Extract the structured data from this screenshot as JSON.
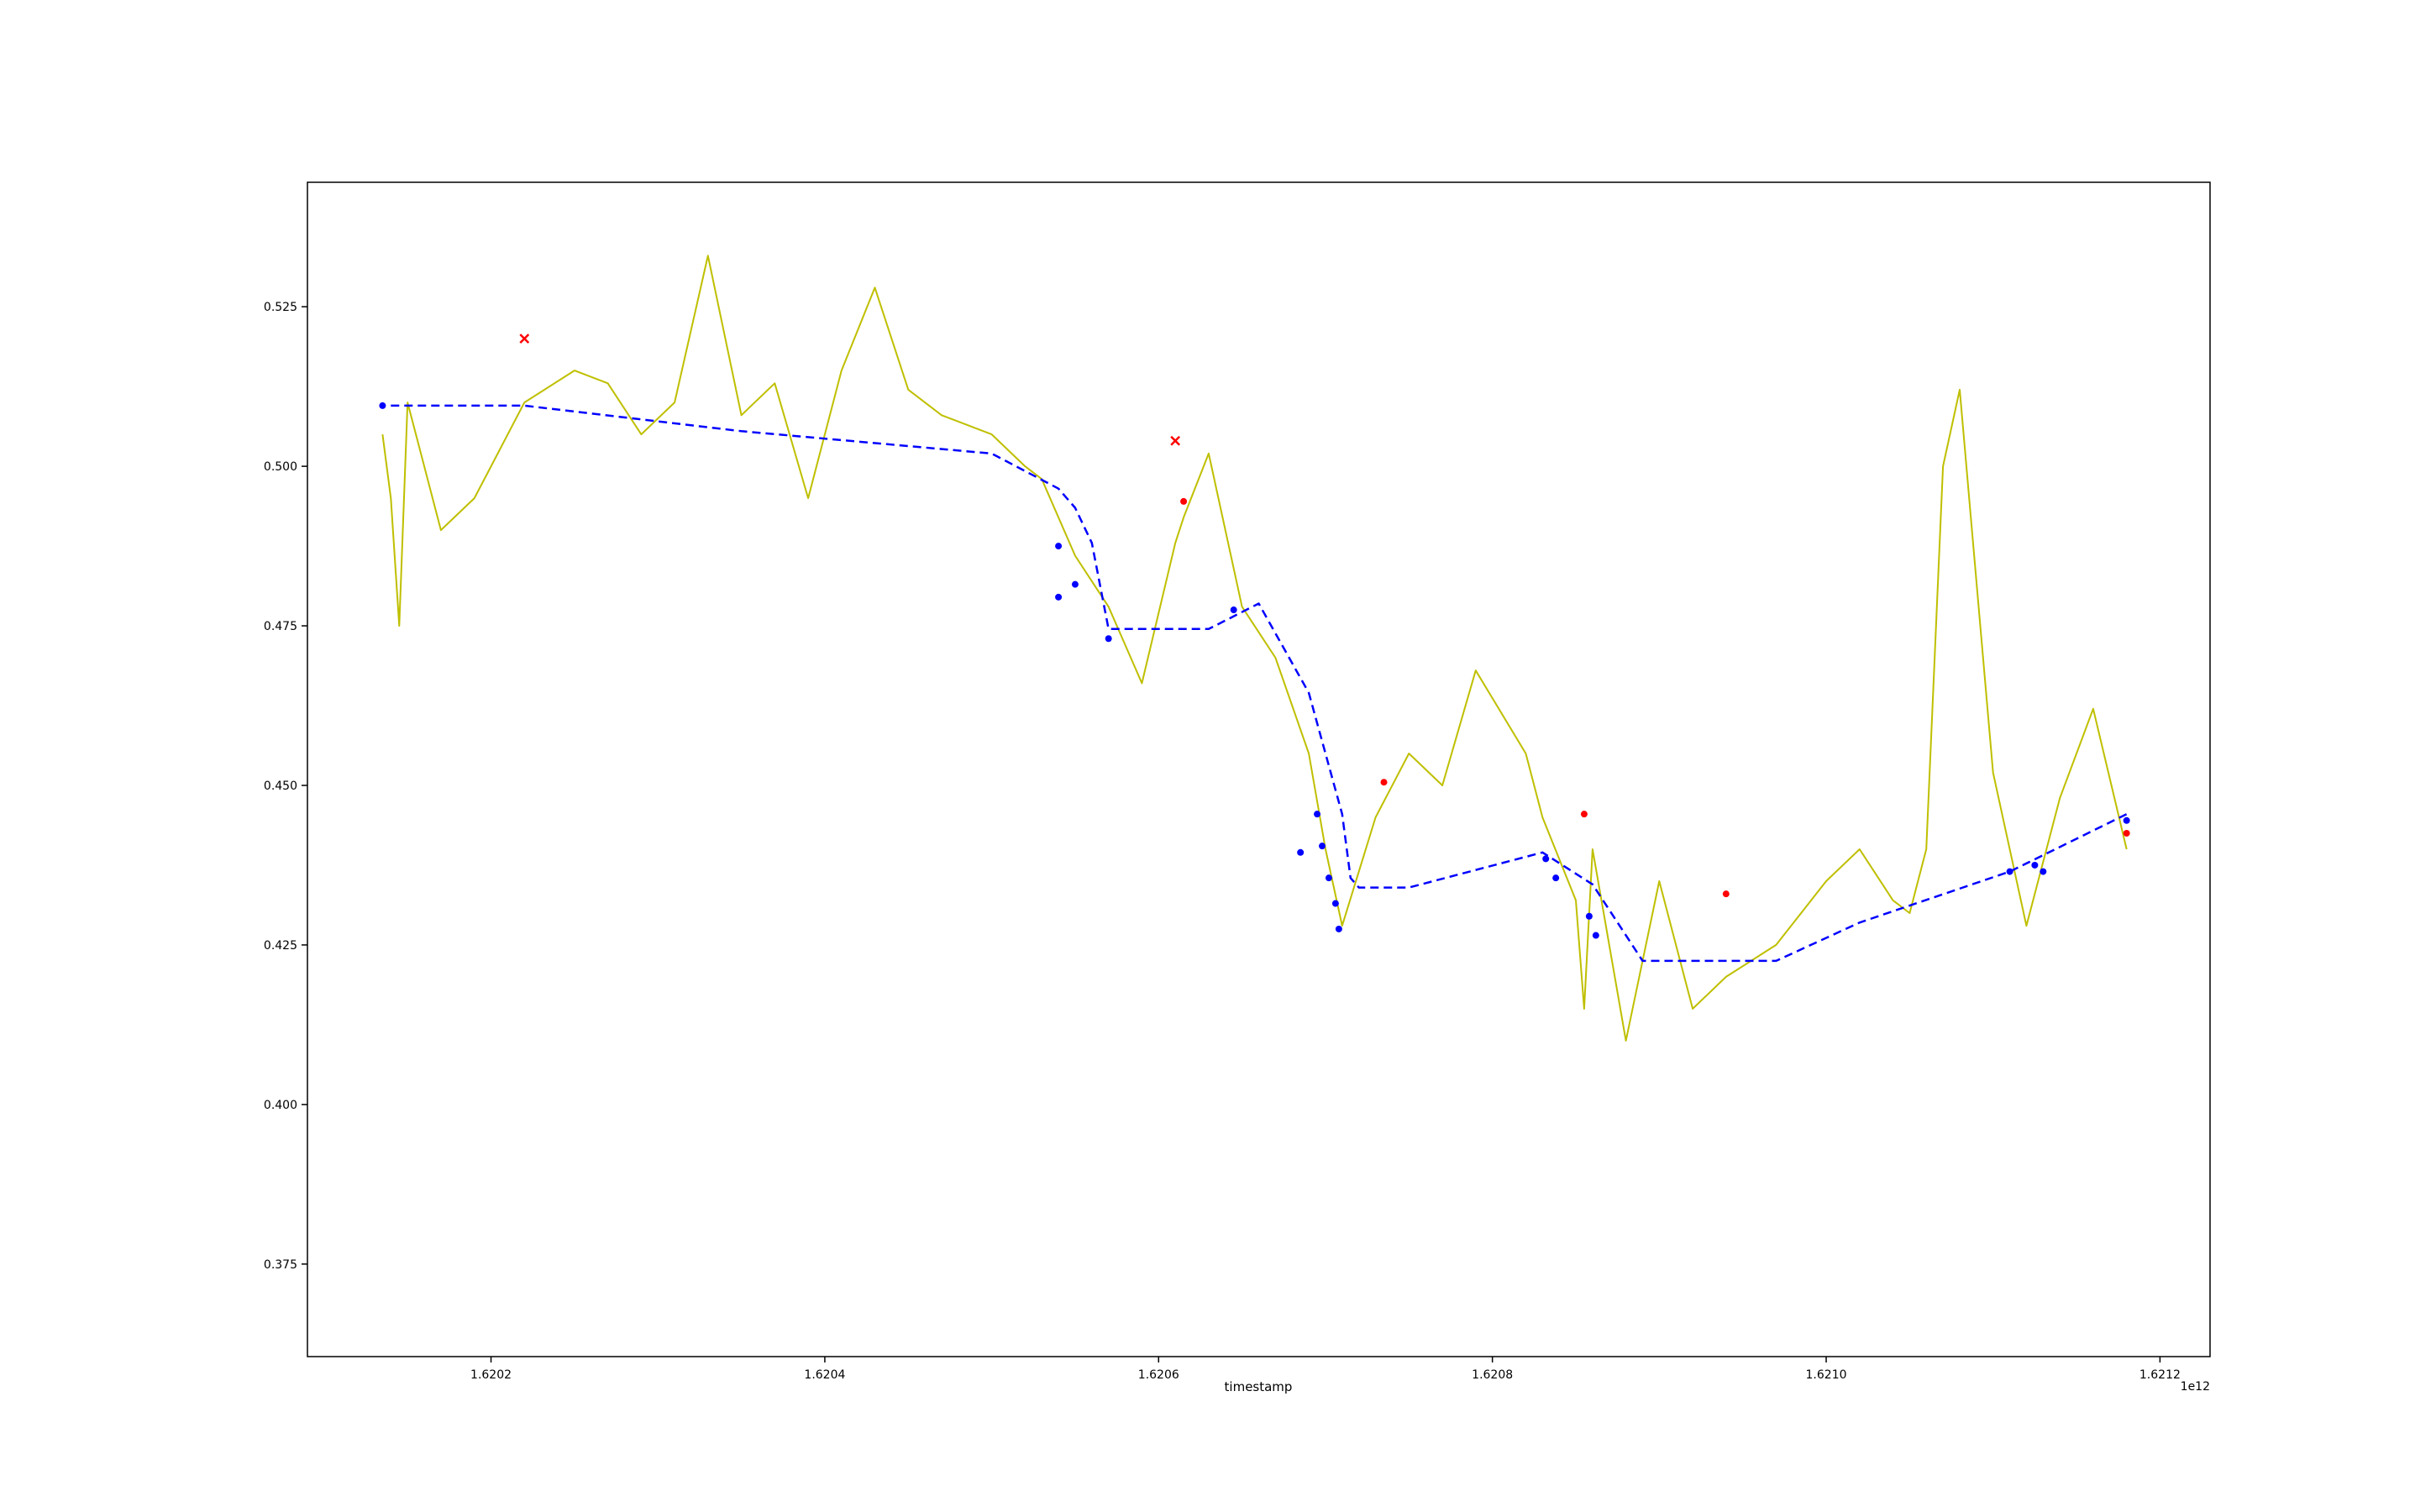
{
  "chart_data": {
    "type": "line",
    "title": "",
    "xlabel": "timestamp",
    "ylabel": "",
    "x_offset_label": "1e12",
    "xlim": [
      1.62009,
      1.62123
    ],
    "ylim": [
      0.3605,
      0.5445
    ],
    "x_ticks": [
      {
        "value": 1.6202,
        "label": "1.6202"
      },
      {
        "value": 1.6204,
        "label": "1.6204"
      },
      {
        "value": 1.6206,
        "label": "1.6206"
      },
      {
        "value": 1.6208,
        "label": "1.6208"
      },
      {
        "value": 1.621,
        "label": "1.6210"
      },
      {
        "value": 1.6212,
        "label": "1.6212"
      }
    ],
    "y_ticks": [
      {
        "value": 0.375,
        "label": "0.375"
      },
      {
        "value": 0.4,
        "label": "0.400"
      },
      {
        "value": 0.425,
        "label": "0.425"
      },
      {
        "value": 0.45,
        "label": "0.450"
      },
      {
        "value": 0.475,
        "label": "0.475"
      },
      {
        "value": 0.5,
        "label": "0.500"
      },
      {
        "value": 0.525,
        "label": "0.525"
      }
    ],
    "grid": false,
    "legend": "none",
    "colors": {
      "price": "#bfbf00",
      "trend": "#0000ff",
      "markers_red": "#ff0000",
      "markers_blue": "#0000ff"
    },
    "series": [
      {
        "style": "solid",
        "color": "#bfbf00",
        "x": [
          1.620135,
          1.62014,
          1.620145,
          1.62015,
          1.62017,
          1.62019,
          1.6202,
          1.62022,
          1.62025,
          1.62027,
          1.62029,
          1.62031,
          1.62033,
          1.62035,
          1.62037,
          1.62039,
          1.62041,
          1.62043,
          1.62045,
          1.62047,
          1.6205,
          1.62052,
          1.62053,
          1.62055,
          1.62056,
          1.62057,
          1.62059,
          1.62061,
          1.620615,
          1.62063,
          1.62065,
          1.62067,
          1.62069,
          1.6207,
          1.62071,
          1.62073,
          1.62075,
          1.62077,
          1.62079,
          1.62082,
          1.62083,
          1.62085,
          1.620855,
          1.62086,
          1.62088,
          1.6209,
          1.62092,
          1.62094,
          1.62097,
          1.621,
          1.62102,
          1.62104,
          1.62105,
          1.62106,
          1.62107,
          1.62108,
          1.6211,
          1.62112,
          1.62114,
          1.62116,
          1.62118
        ],
        "y": [
          0.505,
          0.495,
          0.475,
          0.51,
          0.49,
          0.495,
          0.5,
          0.51,
          0.515,
          0.513,
          0.505,
          0.51,
          0.533,
          0.508,
          0.513,
          0.495,
          0.515,
          0.528,
          0.512,
          0.508,
          0.505,
          0.5,
          0.498,
          0.486,
          0.482,
          0.478,
          0.466,
          0.488,
          0.492,
          0.502,
          0.478,
          0.47,
          0.455,
          0.44,
          0.428,
          0.445,
          0.455,
          0.45,
          0.468,
          0.455,
          0.445,
          0.432,
          0.415,
          0.44,
          0.41,
          0.435,
          0.415,
          0.42,
          0.425,
          0.435,
          0.44,
          0.432,
          0.43,
          0.44,
          0.5,
          0.512,
          0.452,
          0.428,
          0.448,
          0.462,
          0.44
        ]
      },
      {
        "style": "dashed",
        "color": "#0000ff",
        "x": [
          1.62014,
          1.62018,
          1.62022,
          1.62035,
          1.6205,
          1.62054,
          1.62055,
          1.62056,
          1.62057,
          1.62059,
          1.62063,
          1.62066,
          1.62069,
          1.62071,
          1.620715,
          1.62072,
          1.62075,
          1.62083,
          1.62086,
          1.62089,
          1.62093,
          1.62097,
          1.62102,
          1.62111,
          1.62118
        ],
        "y": [
          0.5095,
          0.5095,
          0.5095,
          0.5055,
          0.502,
          0.4965,
          0.4935,
          0.488,
          0.4745,
          0.4745,
          0.4745,
          0.4785,
          0.4645,
          0.4455,
          0.4355,
          0.434,
          0.434,
          0.4395,
          0.4345,
          0.4225,
          0.4225,
          0.4225,
          0.4285,
          0.4365,
          0.4455
        ]
      }
    ],
    "markers": [
      {
        "x": 1.62022,
        "y": 0.52,
        "color": "red",
        "shape": "x"
      },
      {
        "x": 1.62061,
        "y": 0.504,
        "color": "red",
        "shape": "x"
      },
      {
        "x": 1.620615,
        "y": 0.4945,
        "color": "red",
        "shape": "dot"
      },
      {
        "x": 1.620735,
        "y": 0.4505,
        "color": "red",
        "shape": "dot"
      },
      {
        "x": 1.620855,
        "y": 0.4455,
        "color": "red",
        "shape": "dot"
      },
      {
        "x": 1.62094,
        "y": 0.433,
        "color": "red",
        "shape": "dot"
      },
      {
        "x": 1.620135,
        "y": 0.5095,
        "color": "blue",
        "shape": "dot"
      },
      {
        "x": 1.62054,
        "y": 0.4875,
        "color": "blue",
        "shape": "dot"
      },
      {
        "x": 1.62054,
        "y": 0.4795,
        "color": "blue",
        "shape": "dot"
      },
      {
        "x": 1.62055,
        "y": 0.4815,
        "color": "blue",
        "shape": "dot"
      },
      {
        "x": 1.62057,
        "y": 0.473,
        "color": "blue",
        "shape": "dot"
      },
      {
        "x": 1.620645,
        "y": 0.4775,
        "color": "blue",
        "shape": "dot"
      },
      {
        "x": 1.620685,
        "y": 0.4395,
        "color": "blue",
        "shape": "dot"
      },
      {
        "x": 1.620695,
        "y": 0.4455,
        "color": "blue",
        "shape": "dot"
      },
      {
        "x": 1.620698,
        "y": 0.4405,
        "color": "blue",
        "shape": "dot"
      },
      {
        "x": 1.620702,
        "y": 0.4355,
        "color": "blue",
        "shape": "dot"
      },
      {
        "x": 1.620706,
        "y": 0.4315,
        "color": "blue",
        "shape": "dot"
      },
      {
        "x": 1.620708,
        "y": 0.4275,
        "color": "blue",
        "shape": "dot"
      },
      {
        "x": 1.620832,
        "y": 0.4385,
        "color": "blue",
        "shape": "dot"
      },
      {
        "x": 1.620838,
        "y": 0.4355,
        "color": "blue",
        "shape": "dot"
      },
      {
        "x": 1.620858,
        "y": 0.4295,
        "color": "blue",
        "shape": "dot"
      },
      {
        "x": 1.620862,
        "y": 0.4265,
        "color": "blue",
        "shape": "dot"
      },
      {
        "x": 1.62111,
        "y": 0.4365,
        "color": "blue",
        "shape": "dot"
      },
      {
        "x": 1.621125,
        "y": 0.4375,
        "color": "blue",
        "shape": "dot"
      },
      {
        "x": 1.62113,
        "y": 0.4365,
        "color": "blue",
        "shape": "dot"
      },
      {
        "x": 1.62118,
        "y": 0.4445,
        "color": "blue",
        "shape": "dot"
      },
      {
        "x": 1.62118,
        "y": 0.4425,
        "color": "red",
        "shape": "dot"
      }
    ]
  }
}
